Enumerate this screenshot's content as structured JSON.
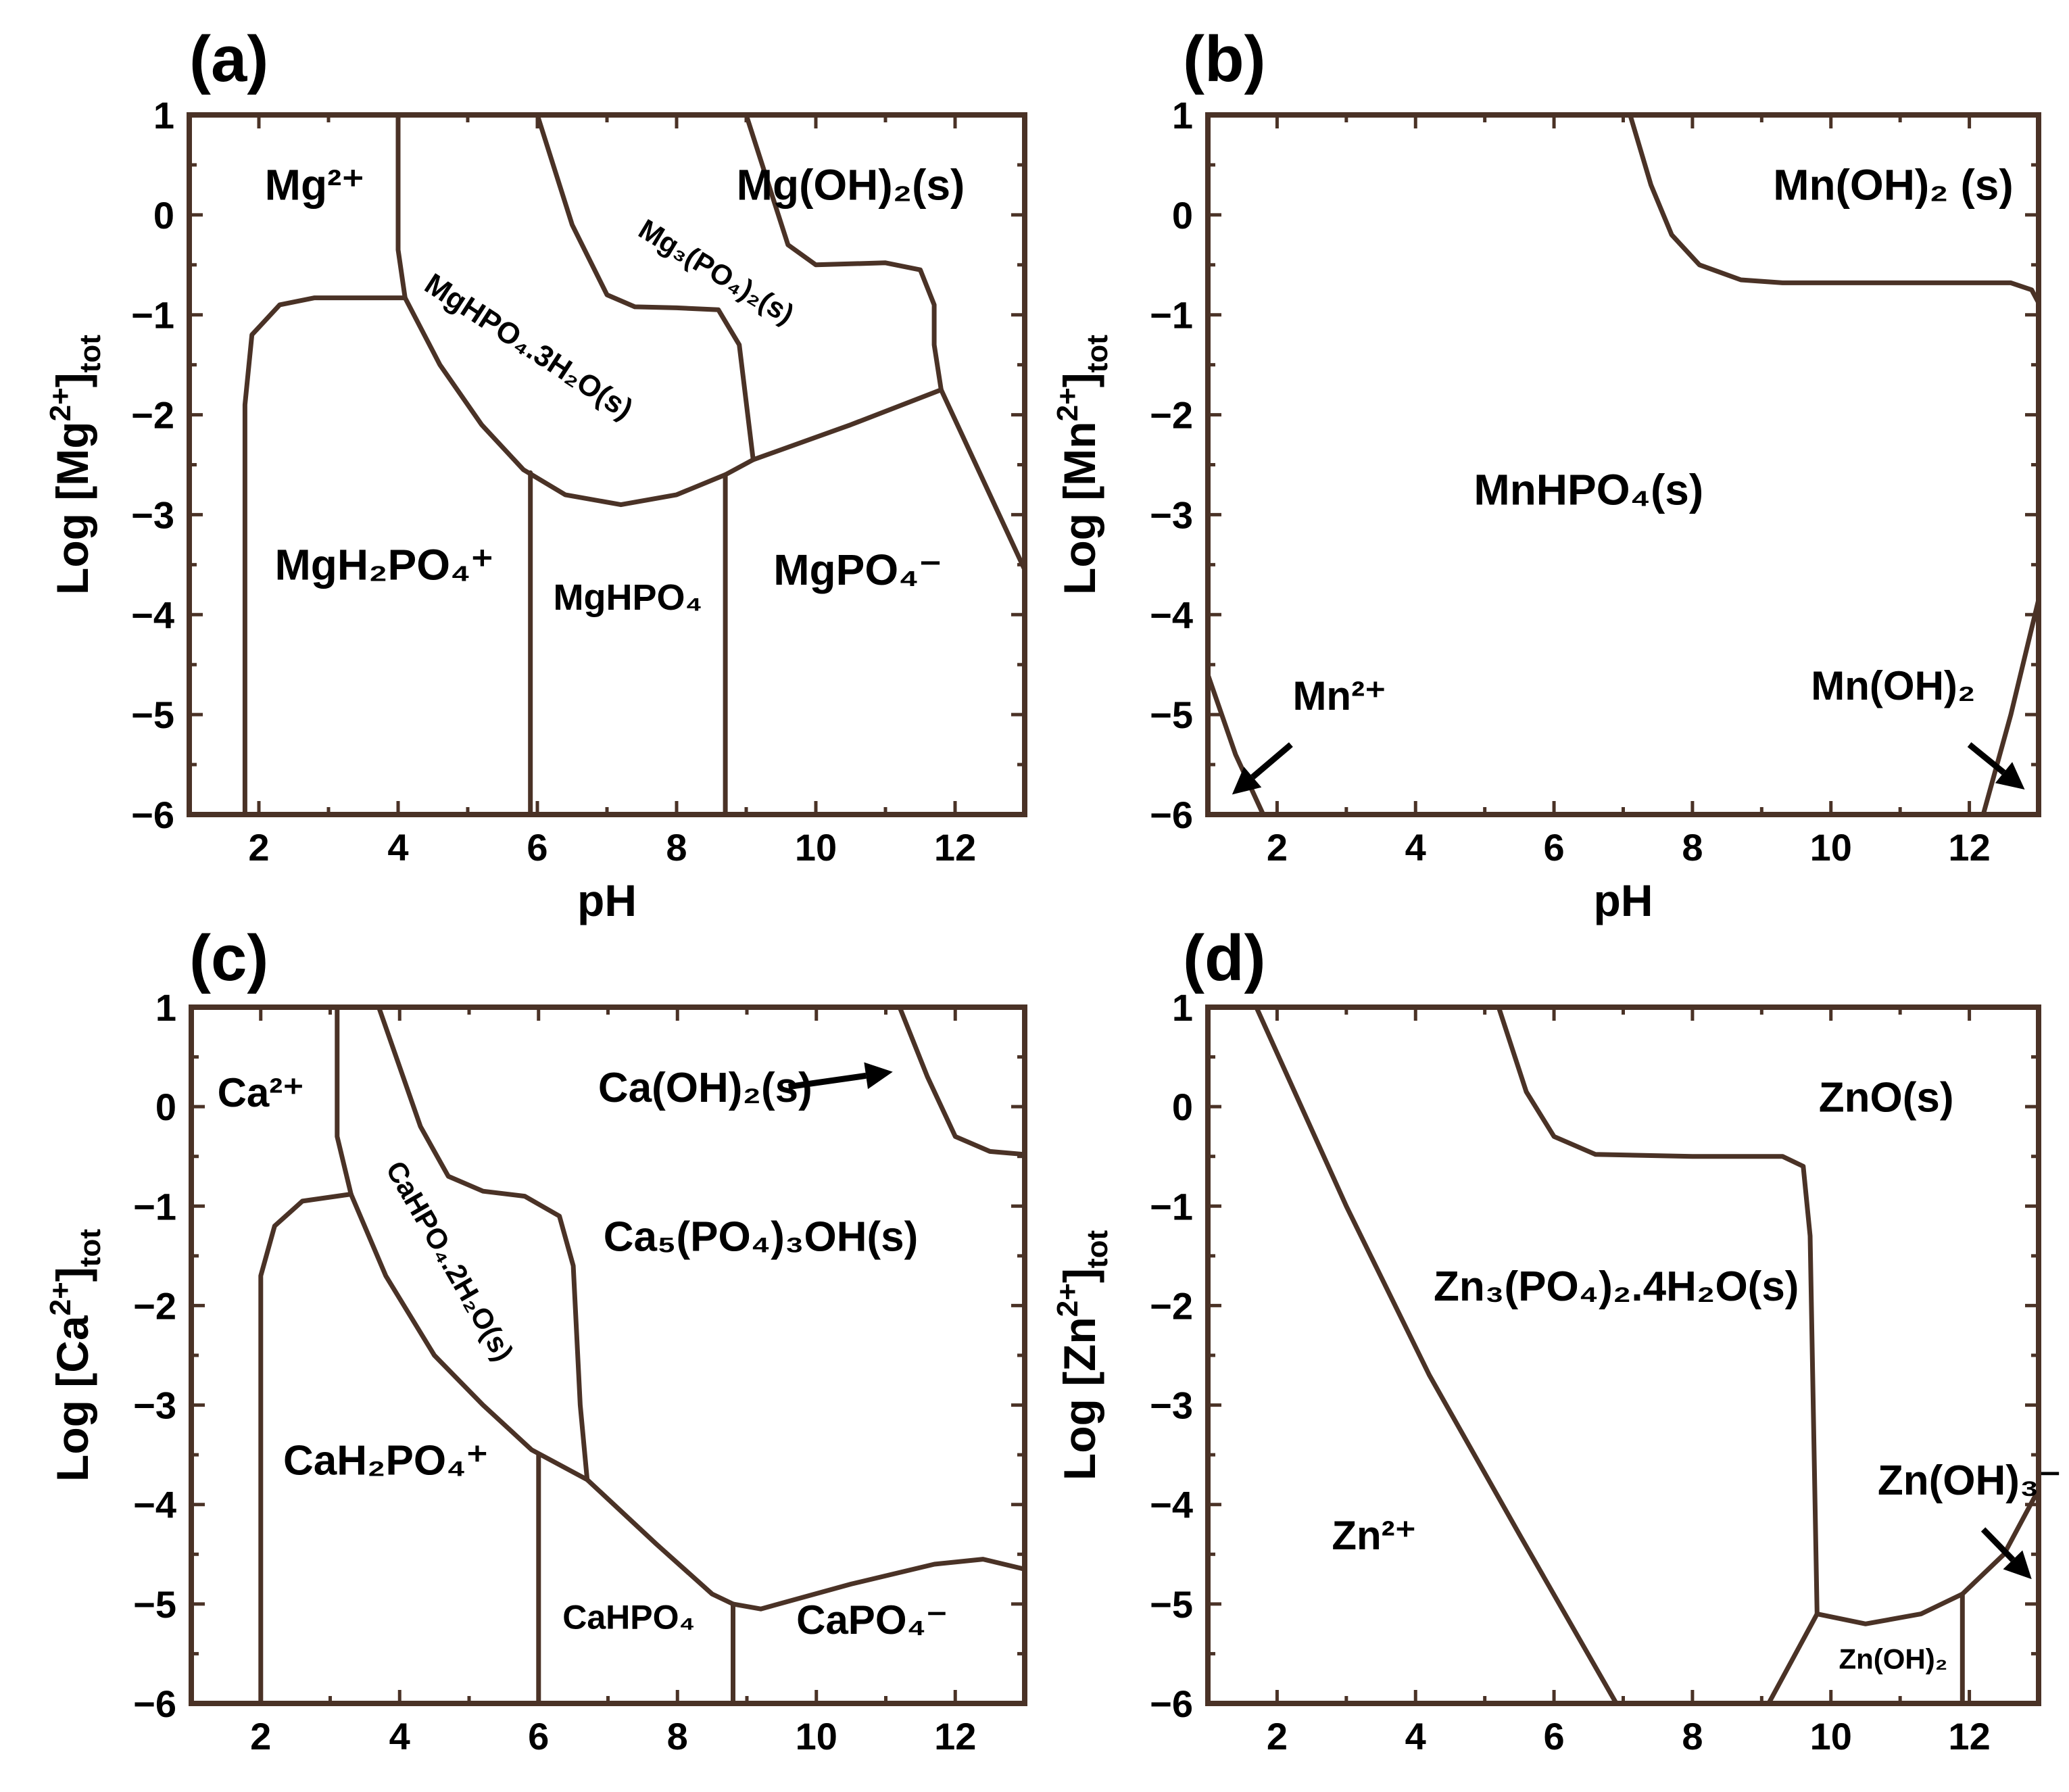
{
  "chart_data": [
    {
      "type": "phase-diagram",
      "panel": "(a)",
      "xlabel": "pH",
      "ylabel": "Log [Mg2+]tot",
      "xlim": [
        1,
        13
      ],
      "ylim": [
        -6,
        1
      ],
      "xticks": [
        "2",
        "4",
        "6",
        "8",
        "10",
        "12"
      ],
      "yticks": [
        "1",
        "0",
        "−1",
        "−2",
        "−3",
        "−4",
        "−5",
        "−6"
      ],
      "regions": [
        {
          "id": "mg2p",
          "label": "Mg²⁺",
          "x": 2.8,
          "y": 0.15,
          "size": 64
        },
        {
          "id": "mghpo4s",
          "label": "MgHPO₄.3H₂O(s)",
          "x": 5.8,
          "y": -1.4,
          "size": 44,
          "rotate": 33
        },
        {
          "id": "mg3po4",
          "label": "Mg₃(PO₄)₂(s)",
          "x": 8.5,
          "y": -0.65,
          "size": 42,
          "rotate": 31
        },
        {
          "id": "mgoh2s",
          "label": "Mg(OH)₂(s)",
          "x": 10.5,
          "y": 0.15,
          "size": 64
        },
        {
          "id": "mgh2po4",
          "label": "MgH₂PO₄⁺",
          "x": 3.8,
          "y": -3.65,
          "size": 64
        },
        {
          "id": "mghpo4",
          "label": "MgHPO₄",
          "x": 7.3,
          "y": -3.95,
          "size": 54
        },
        {
          "id": "mgpo4",
          "label": "MgPO₄⁻",
          "x": 10.6,
          "y": -3.7,
          "size": 64
        }
      ],
      "boundaries": [
        [
          [
            1.8,
            -6
          ],
          [
            1.8,
            -1.9
          ],
          [
            1.9,
            -1.2
          ],
          [
            2.3,
            -0.9
          ],
          [
            2.8,
            -0.83
          ],
          [
            4.1,
            -0.83
          ]
        ],
        [
          [
            4.0,
            1
          ],
          [
            4.0,
            -0.35
          ],
          [
            4.1,
            -0.83
          ]
        ],
        [
          [
            4.1,
            -0.83
          ],
          [
            4.6,
            -1.5
          ],
          [
            5.2,
            -2.1
          ],
          [
            5.8,
            -2.55
          ],
          [
            6.4,
            -2.8
          ],
          [
            7.2,
            -2.9
          ],
          [
            8.0,
            -2.8
          ],
          [
            8.7,
            -2.6
          ],
          [
            9.1,
            -2.45
          ]
        ],
        [
          [
            5.9,
            -6
          ],
          [
            5.9,
            -2.58
          ]
        ],
        [
          [
            8.7,
            -6
          ],
          [
            8.7,
            -2.6
          ]
        ],
        [
          [
            6.0,
            1
          ],
          [
            6.5,
            -0.1
          ],
          [
            7.0,
            -0.8
          ],
          [
            7.4,
            -0.92
          ],
          [
            8.0,
            -0.93
          ],
          [
            8.6,
            -0.95
          ],
          [
            8.9,
            -1.3
          ],
          [
            9.1,
            -2.45
          ]
        ],
        [
          [
            9.1,
            -2.45
          ],
          [
            10.5,
            -2.1
          ],
          [
            11.8,
            -1.75
          ]
        ],
        [
          [
            9.0,
            1
          ],
          [
            9.6,
            -0.3
          ],
          [
            10.0,
            -0.5
          ],
          [
            11.0,
            -0.48
          ],
          [
            11.5,
            -0.55
          ],
          [
            11.7,
            -0.9
          ],
          [
            11.7,
            -1.3
          ],
          [
            11.8,
            -1.75
          ]
        ],
        [
          [
            11.8,
            -1.75
          ],
          [
            12.3,
            -2.5
          ],
          [
            13.0,
            -3.55
          ]
        ]
      ]
    },
    {
      "type": "phase-diagram",
      "panel": "(b)",
      "xlabel": "pH",
      "ylabel": "Log [Mn2+]tot",
      "xlim": [
        1,
        13
      ],
      "ylim": [
        -6,
        1
      ],
      "xticks": [
        "2",
        "4",
        "6",
        "8",
        "10",
        "12"
      ],
      "yticks": [
        "1",
        "0",
        "−1",
        "−2",
        "−3",
        "−4",
        "−5",
        "−6"
      ],
      "regions": [
        {
          "id": "mnoh2s",
          "label": "Mn(OH)₂ (s)",
          "x": 10.9,
          "y": 0.15,
          "size": 64
        },
        {
          "id": "mnhpo4s",
          "label": "MnHPO₄(s)",
          "x": 6.5,
          "y": -2.9,
          "size": 64
        },
        {
          "id": "mn2p",
          "label": "Mn²⁺",
          "x": 2.9,
          "y": -4.95,
          "size": 60
        },
        {
          "id": "mnoh2",
          "label": "Mn(OH)₂",
          "x": 10.9,
          "y": -4.85,
          "size": 60
        }
      ],
      "arrows": [
        {
          "from": [
            2.2,
            -5.3
          ],
          "to": [
            1.35,
            -5.8
          ]
        },
        {
          "from": [
            12.0,
            -5.3
          ],
          "to": [
            12.8,
            -5.75
          ]
        }
      ],
      "boundaries": [
        [
          [
            7.1,
            1
          ],
          [
            7.4,
            0.3
          ],
          [
            7.7,
            -0.2
          ],
          [
            8.1,
            -0.5
          ],
          [
            8.7,
            -0.65
          ],
          [
            9.3,
            -0.68
          ],
          [
            12.6,
            -0.68
          ],
          [
            12.9,
            -0.75
          ],
          [
            13.0,
            -0.88
          ]
        ],
        [
          [
            1.0,
            -4.6
          ],
          [
            1.4,
            -5.4
          ],
          [
            1.8,
            -6.0
          ]
        ],
        [
          [
            12.2,
            -6.0
          ],
          [
            12.6,
            -5.0
          ],
          [
            13.0,
            -3.85
          ]
        ]
      ]
    },
    {
      "type": "phase-diagram",
      "panel": "(c)",
      "xlabel": "",
      "ylabel": "Log [Ca2+]tot",
      "xlim": [
        1,
        13
      ],
      "ylim": [
        -6,
        1
      ],
      "xticks": [
        "2",
        "4",
        "6",
        "8",
        "10",
        "12"
      ],
      "yticks": [
        "1",
        "0",
        "−1",
        "−2",
        "−3",
        "−4",
        "−5",
        "−6"
      ],
      "regions": [
        {
          "id": "ca2p",
          "label": "Ca²⁺",
          "x": 2.0,
          "y": 0.0,
          "size": 60
        },
        {
          "id": "cahpo4s",
          "label": "CaHPO₄.2H₂O(s)",
          "x": 4.6,
          "y": -1.6,
          "size": 42,
          "rotate": 60
        },
        {
          "id": "caoh2s",
          "label": "Ca(OH)₂(s)",
          "x": 8.4,
          "y": 0.05,
          "size": 62
        },
        {
          "id": "ca5",
          "label": "Ca₅(PO₄)₃OH(s)",
          "x": 9.2,
          "y": -1.45,
          "size": 62
        },
        {
          "id": "cah2po4",
          "label": "CaH₂PO₄⁺",
          "x": 3.8,
          "y": -3.7,
          "size": 62
        },
        {
          "id": "cahpo4",
          "label": "CaHPO₄",
          "x": 7.3,
          "y": -5.25,
          "size": 50
        },
        {
          "id": "capo4",
          "label": "CaPO₄⁻",
          "x": 10.8,
          "y": -5.3,
          "size": 60
        }
      ],
      "arrows": [
        {
          "from": [
            9.6,
            0.2
          ],
          "to": [
            11.1,
            0.35
          ]
        }
      ],
      "boundaries": [
        [
          [
            2.0,
            -6
          ],
          [
            2.0,
            -1.7
          ],
          [
            2.2,
            -1.2
          ],
          [
            2.6,
            -0.95
          ],
          [
            3.3,
            -0.88
          ]
        ],
        [
          [
            3.1,
            1
          ],
          [
            3.1,
            -0.3
          ],
          [
            3.3,
            -0.88
          ]
        ],
        [
          [
            3.3,
            -0.88
          ],
          [
            3.8,
            -1.7
          ],
          [
            4.5,
            -2.5
          ],
          [
            5.2,
            -3.0
          ],
          [
            5.9,
            -3.45
          ],
          [
            6.7,
            -3.75
          ]
        ],
        [
          [
            3.7,
            1
          ],
          [
            4.3,
            -0.2
          ],
          [
            4.7,
            -0.7
          ],
          [
            5.2,
            -0.85
          ],
          [
            5.8,
            -0.9
          ],
          [
            6.3,
            -1.1
          ],
          [
            6.5,
            -1.6
          ],
          [
            6.6,
            -3.0
          ],
          [
            6.7,
            -3.75
          ]
        ],
        [
          [
            6.0,
            -6
          ],
          [
            6.0,
            -3.5
          ]
        ],
        [
          [
            6.7,
            -3.75
          ],
          [
            7.7,
            -4.4
          ],
          [
            8.5,
            -4.9
          ],
          [
            8.8,
            -5.0
          ]
        ],
        [
          [
            8.8,
            -6
          ],
          [
            8.8,
            -5.0
          ]
        ],
        [
          [
            8.8,
            -5.0
          ],
          [
            9.2,
            -5.05
          ],
          [
            10.5,
            -4.8
          ],
          [
            11.7,
            -4.6
          ],
          [
            12.4,
            -4.55
          ],
          [
            13.0,
            -4.65
          ]
        ],
        [
          [
            11.2,
            1
          ],
          [
            11.6,
            0.3
          ],
          [
            12.0,
            -0.3
          ],
          [
            12.5,
            -0.45
          ],
          [
            13.0,
            -0.48
          ]
        ]
      ]
    },
    {
      "type": "phase-diagram",
      "panel": "(d)",
      "xlabel": "",
      "ylabel": "Log [Zn2+]tot",
      "xlim": [
        1,
        13
      ],
      "ylim": [
        -6,
        1
      ],
      "xticks": [
        "2",
        "4",
        "6",
        "8",
        "10",
        "12"
      ],
      "yticks": [
        "1",
        "0",
        "−1",
        "−2",
        "−3",
        "−4",
        "−5",
        "−6"
      ],
      "regions": [
        {
          "id": "zno",
          "label": "ZnO(s)",
          "x": 10.8,
          "y": -0.05,
          "size": 62
        },
        {
          "id": "zn3",
          "label": "Zn₃(PO₄)₂.4H₂O(s)",
          "x": 6.9,
          "y": -1.95,
          "size": 62
        },
        {
          "id": "zn2p",
          "label": "Zn²⁺",
          "x": 3.4,
          "y": -4.45,
          "size": 60
        },
        {
          "id": "znoh3",
          "label": "Zn(OH)₃⁻",
          "x": 12.0,
          "y": -3.9,
          "size": 62
        },
        {
          "id": "znoh2",
          "label": "Zn(OH)₂",
          "x": 10.9,
          "y": -5.65,
          "size": 42
        }
      ],
      "arrows": [
        {
          "from": [
            12.2,
            -4.25
          ],
          "to": [
            12.9,
            -4.75
          ]
        }
      ],
      "boundaries": [
        [
          [
            1.7,
            1
          ],
          [
            3.0,
            -1.0
          ],
          [
            4.2,
            -2.7
          ],
          [
            5.5,
            -4.3
          ],
          [
            6.9,
            -6.0
          ]
        ],
        [
          [
            5.2,
            1
          ],
          [
            5.6,
            0.15
          ],
          [
            6.0,
            -0.3
          ],
          [
            6.6,
            -0.48
          ],
          [
            8.0,
            -0.5
          ],
          [
            9.3,
            -0.5
          ],
          [
            9.6,
            -0.6
          ],
          [
            9.7,
            -1.3
          ],
          [
            9.8,
            -5.1
          ]
        ],
        [
          [
            9.8,
            -5.1
          ],
          [
            10.5,
            -5.2
          ],
          [
            11.3,
            -5.1
          ],
          [
            11.9,
            -4.9
          ],
          [
            12.5,
            -4.5
          ],
          [
            13.0,
            -3.85
          ]
        ],
        [
          [
            9.1,
            -6.0
          ],
          [
            9.8,
            -5.1
          ]
        ],
        [
          [
            11.9,
            -6.0
          ],
          [
            11.9,
            -4.9
          ]
        ]
      ]
    }
  ]
}
